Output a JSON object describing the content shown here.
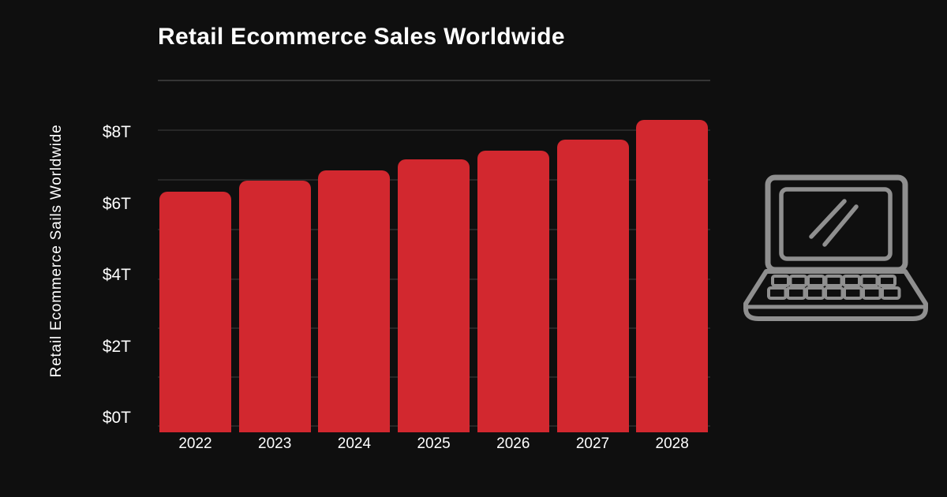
{
  "style": {
    "background": "#0f0f0f",
    "text_color": "#ffffff",
    "bar_color": "#d2282f",
    "grid_color": "rgba(255,255,255,0.10)",
    "grid_color_top": "rgba(255,255,255,0.16)",
    "icon_color": "#8f8f8f"
  },
  "chart_data": {
    "type": "bar",
    "title": "Retail Ecommerce Sales Worldwide",
    "ylabel": "Retail Ecommerce Sails Worldwide",
    "xlabel": "",
    "unit": "USD trillions",
    "categories": [
      "2022",
      "2023",
      "2024",
      "2025",
      "2026",
      "2027",
      "2028"
    ],
    "values": [
      6.35,
      6.65,
      6.95,
      7.25,
      7.5,
      7.8,
      8.35
    ],
    "y_ticks": [
      "$8T",
      "$6T",
      "$4T",
      "$2T",
      "$0T"
    ],
    "y_tick_values": [
      8,
      6,
      4,
      2,
      0
    ],
    "ylim": [
      0,
      9
    ],
    "grid": true,
    "legend": false,
    "bar_corner": "rounded-top"
  },
  "decor": {
    "icon": "laptop-icon"
  }
}
